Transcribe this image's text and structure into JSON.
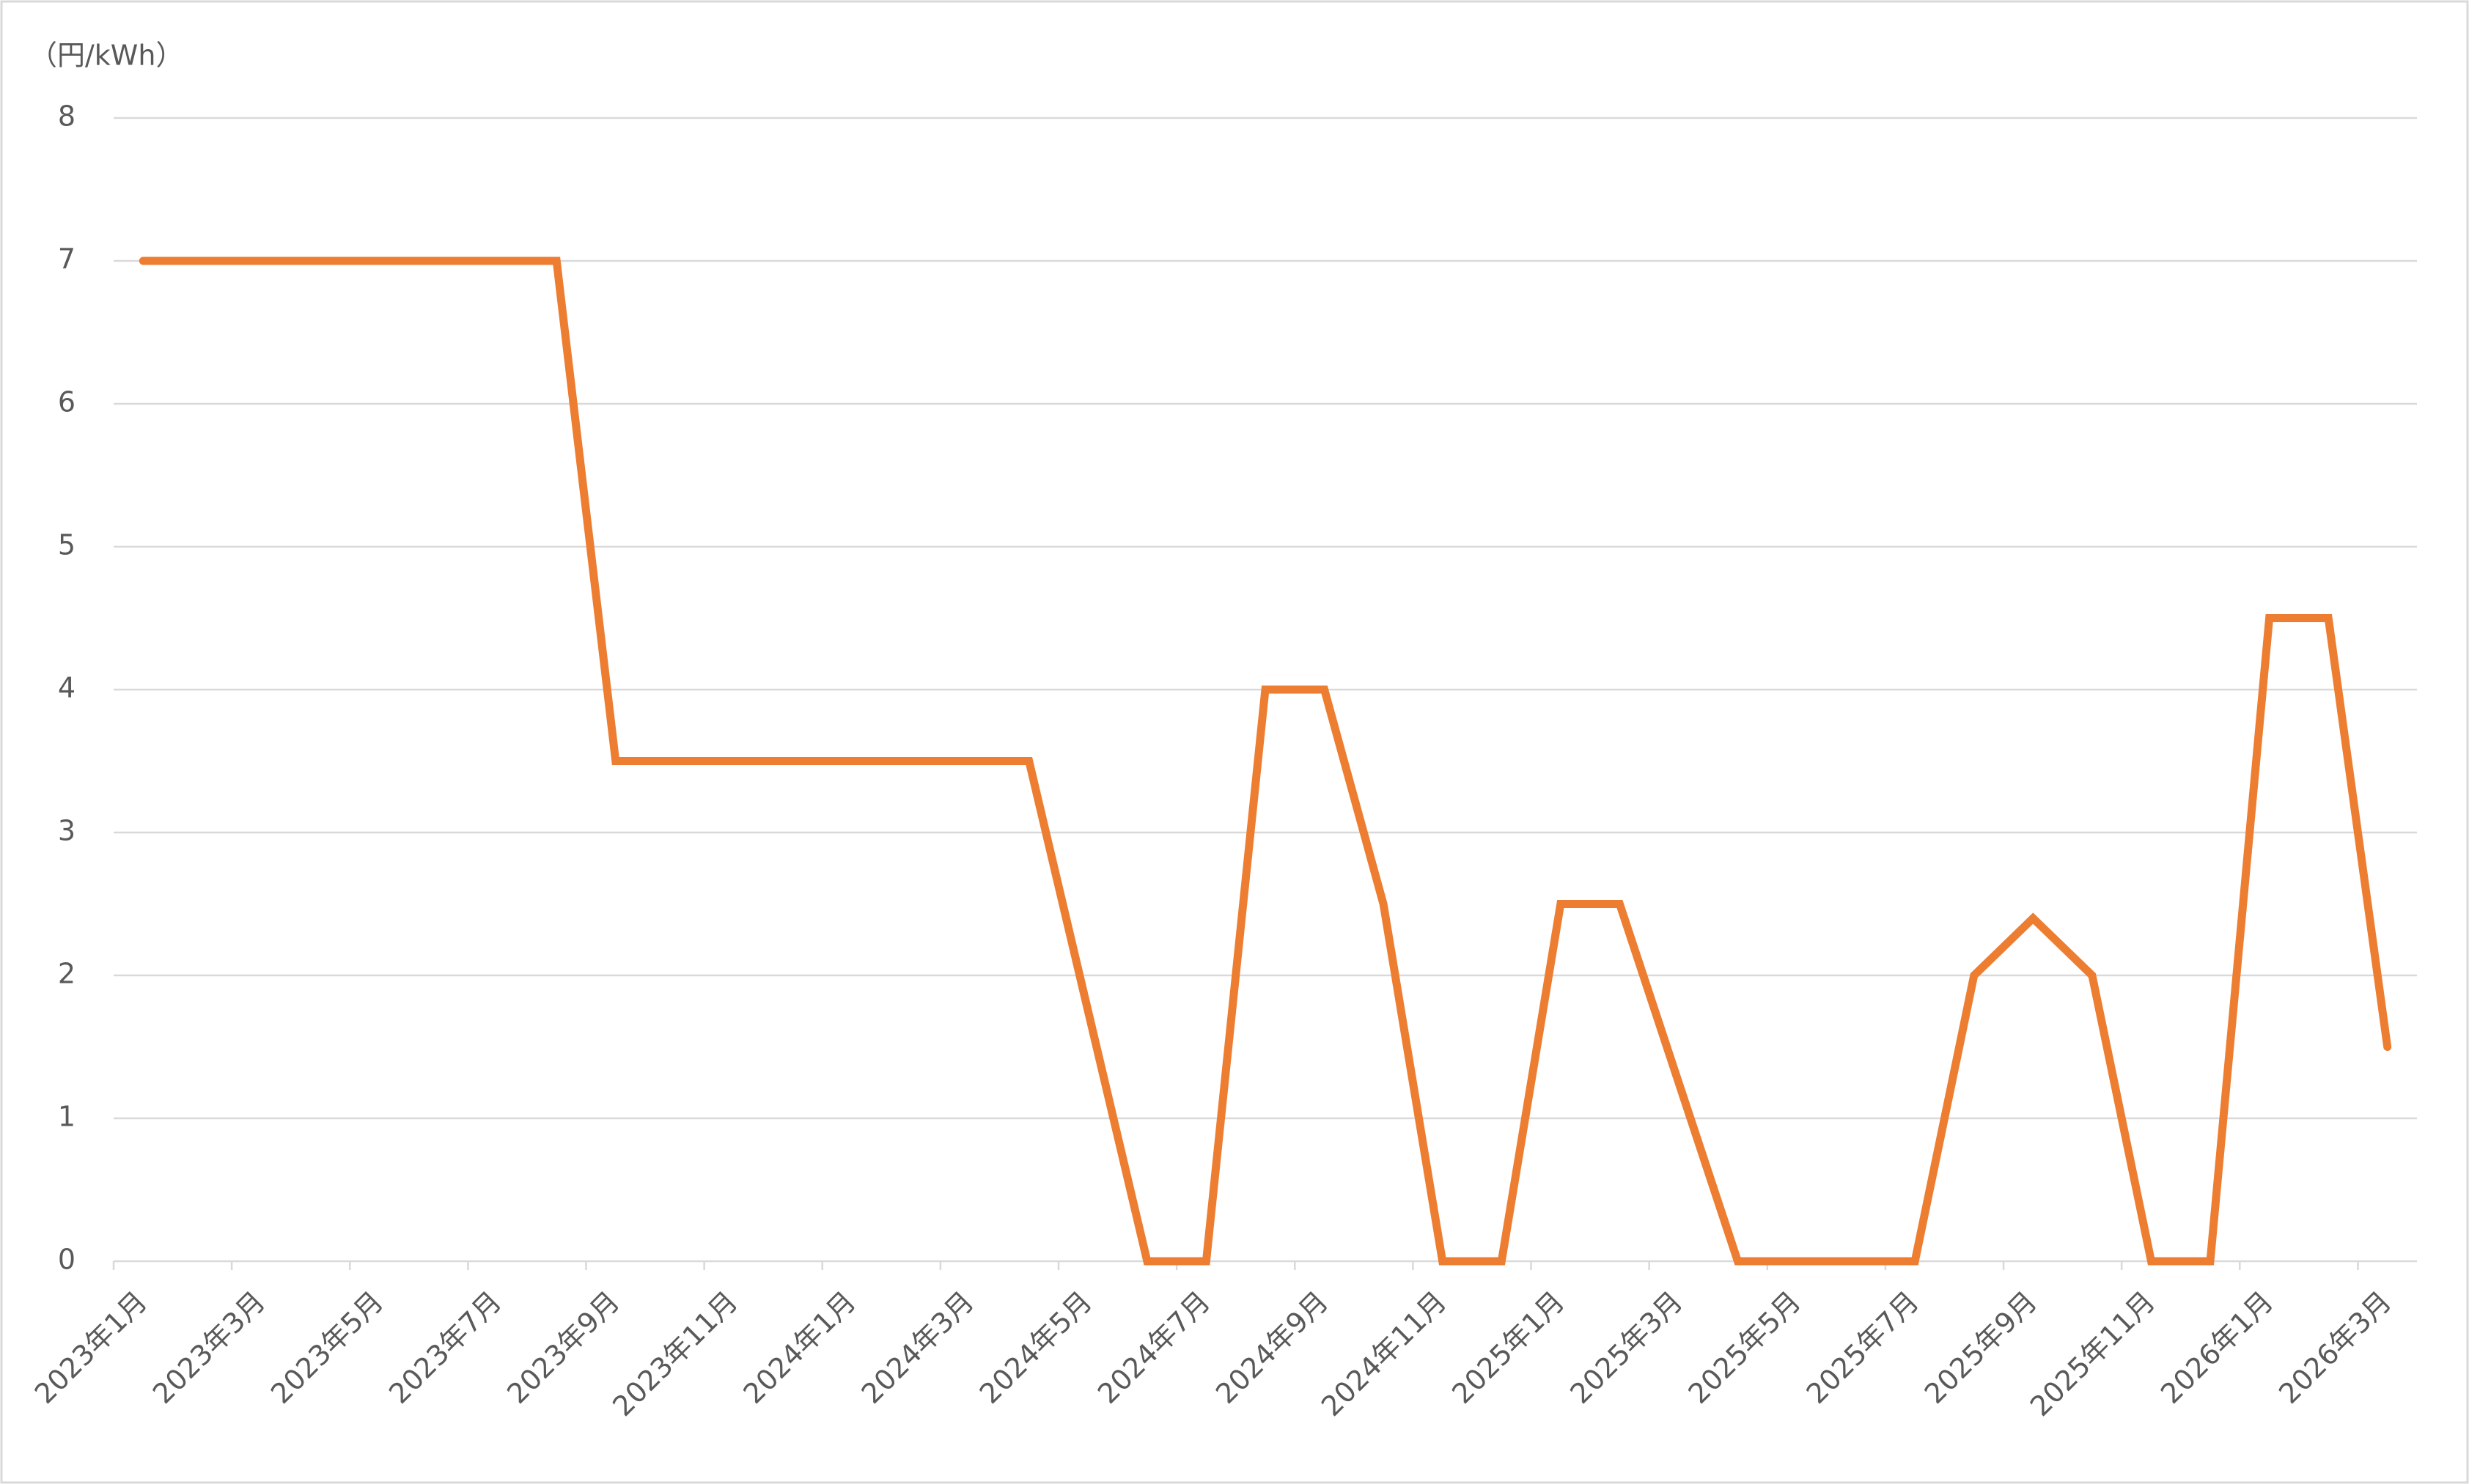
{
  "chart_data": {
    "type": "line",
    "y_label": "（円/kWh）",
    "categories": [
      "2023年1月",
      null,
      "2023年3月",
      null,
      "2023年5月",
      null,
      "2023年7月",
      null,
      "2023年9月",
      null,
      "2023年11月",
      null,
      "2024年1月",
      null,
      "2024年3月",
      null,
      "2024年5月",
      null,
      "2024年7月",
      null,
      "2024年9月",
      null,
      "2024年11月",
      null,
      "2025年1月",
      null,
      "2025年3月",
      null,
      "2025年5月",
      null,
      "2025年7月",
      null,
      "2025年9月",
      null,
      "2025年11月",
      null,
      "2026年1月",
      null,
      "2026年3月"
    ],
    "series": [
      {
        "color": "#ED7D31",
        "values": [
          7,
          7,
          7,
          7,
          7,
          7,
          7,
          7,
          3.5,
          3.5,
          3.5,
          3.5,
          3.5,
          3.5,
          3.5,
          3.5,
          1.75,
          0,
          0,
          4,
          4,
          2.5,
          0,
          0,
          2.5,
          2.5,
          1.25,
          0,
          0,
          0,
          0,
          2,
          2.4,
          2,
          0,
          0,
          4.5,
          4.5,
          1.5
        ]
      }
    ],
    "ylim": [
      0,
      8
    ],
    "yticks": [
      0,
      1,
      2,
      3,
      4,
      5,
      6,
      7,
      8
    ],
    "grid": true
  }
}
